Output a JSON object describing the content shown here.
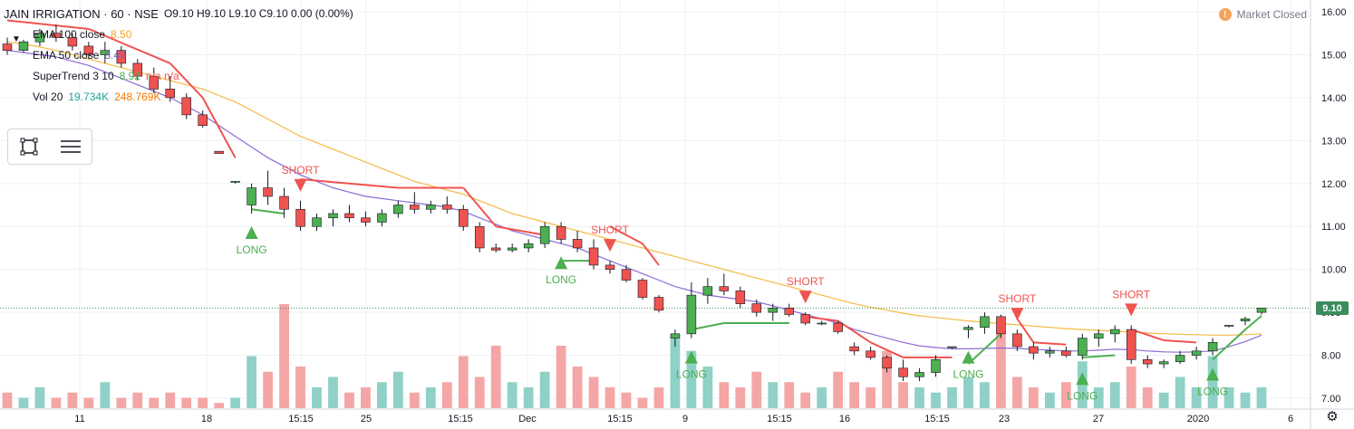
{
  "header": {
    "symbol": "JAIN IRRIGATION · 60 · NSE",
    "ohlc": "O9.10  H9.10  L9.10  C9.10  0.00 (0.00%)",
    "market_status": "Market Closed",
    "market_icon": "!"
  },
  "legend": {
    "ema100_label": "EMA 100 close",
    "ema100_value": "8.50",
    "ema50_label": "EMA 50 close",
    "ema50_value": "8.47",
    "supertrend_label": "SuperTrend 3 10",
    "supertrend_value": "8.92",
    "supertrend_na": "n/a  n/a",
    "vol_label": "Vol 20",
    "vol_value1": "19.734K",
    "vol_value2": "248.769K"
  },
  "colors": {
    "up": "#26a69a",
    "down": "#ef5350",
    "candle_up": "#4caf50",
    "candle_down": "#ef5350",
    "vol_up": "#8fd1c6",
    "vol_down": "#f4a6a6",
    "ema100": "#f5b942",
    "ema50": "#8e6bd6",
    "supertrend_up": "#4caf50",
    "supertrend_down": "#ef5350",
    "grid": "#eef0f4",
    "last_price": "#3c8c5e"
  },
  "icons": [
    "rectangle-tool-icon",
    "text-lines-tool-icon",
    "settings-gear-icon",
    "chevron-down-icon"
  ],
  "chart_data": {
    "type": "candlestick",
    "title": "JAIN IRRIGATION · 60 · NSE",
    "ylim": [
      6.9,
      16.1
    ],
    "y_ticks": [
      "16.00",
      "15.00",
      "14.00",
      "13.00",
      "12.00",
      "11.00",
      "10.00",
      "9.00",
      "8.00",
      "7.00"
    ],
    "x_ticks": [
      "11",
      "18",
      "15:15",
      "25",
      "15:15",
      "Dec",
      "15:15",
      "9",
      "15:15",
      "16",
      "15:15",
      "23",
      "27",
      "2020",
      "6"
    ],
    "last_price": "9.10",
    "candles": [
      {
        "i": 0,
        "o": 15.25,
        "h": 15.4,
        "l": 15.0,
        "c": 15.1
      },
      {
        "i": 1,
        "o": 15.1,
        "h": 15.35,
        "l": 15.05,
        "c": 15.3
      },
      {
        "i": 2,
        "o": 15.3,
        "h": 15.6,
        "l": 15.2,
        "c": 15.5
      },
      {
        "i": 3,
        "o": 15.5,
        "h": 15.7,
        "l": 15.3,
        "c": 15.4
      },
      {
        "i": 4,
        "o": 15.4,
        "h": 15.5,
        "l": 15.1,
        "c": 15.2
      },
      {
        "i": 5,
        "o": 15.2,
        "h": 15.3,
        "l": 14.9,
        "c": 15.0
      },
      {
        "i": 6,
        "o": 15.0,
        "h": 15.3,
        "l": 14.8,
        "c": 15.1
      },
      {
        "i": 7,
        "o": 15.1,
        "h": 15.2,
        "l": 14.7,
        "c": 14.8
      },
      {
        "i": 8,
        "o": 14.8,
        "h": 14.9,
        "l": 14.4,
        "c": 14.5
      },
      {
        "i": 9,
        "o": 14.5,
        "h": 14.7,
        "l": 14.1,
        "c": 14.2
      },
      {
        "i": 10,
        "o": 14.2,
        "h": 14.5,
        "l": 13.9,
        "c": 14.0
      },
      {
        "i": 11,
        "o": 14.0,
        "h": 14.1,
        "l": 13.5,
        "c": 13.6
      },
      {
        "i": 12,
        "o": 13.6,
        "h": 13.7,
        "l": 13.3,
        "c": 13.35
      },
      {
        "i": 13,
        "o": 12.75,
        "h": 12.75,
        "l": 12.7,
        "c": 12.7
      },
      {
        "i": 14,
        "o": 12.05,
        "h": 12.05,
        "l": 12.0,
        "c": 12.05
      },
      {
        "i": 15,
        "o": 11.5,
        "h": 12.0,
        "l": 11.3,
        "c": 11.9
      },
      {
        "i": 16,
        "o": 11.9,
        "h": 12.3,
        "l": 11.5,
        "c": 11.7
      },
      {
        "i": 17,
        "o": 11.7,
        "h": 11.9,
        "l": 11.2,
        "c": 11.4
      },
      {
        "i": 18,
        "o": 11.4,
        "h": 11.6,
        "l": 10.9,
        "c": 11.0
      },
      {
        "i": 19,
        "o": 11.0,
        "h": 11.3,
        "l": 10.9,
        "c": 11.2
      },
      {
        "i": 20,
        "o": 11.2,
        "h": 11.4,
        "l": 11.0,
        "c": 11.3
      },
      {
        "i": 21,
        "o": 11.3,
        "h": 11.5,
        "l": 11.1,
        "c": 11.2
      },
      {
        "i": 22,
        "o": 11.2,
        "h": 11.35,
        "l": 11.0,
        "c": 11.1
      },
      {
        "i": 23,
        "o": 11.1,
        "h": 11.4,
        "l": 11.0,
        "c": 11.3
      },
      {
        "i": 24,
        "o": 11.3,
        "h": 11.6,
        "l": 11.2,
        "c": 11.5
      },
      {
        "i": 25,
        "o": 11.5,
        "h": 11.8,
        "l": 11.3,
        "c": 11.4
      },
      {
        "i": 26,
        "o": 11.4,
        "h": 11.6,
        "l": 11.3,
        "c": 11.5
      },
      {
        "i": 27,
        "o": 11.5,
        "h": 11.7,
        "l": 11.3,
        "c": 11.4
      },
      {
        "i": 28,
        "o": 11.4,
        "h": 11.5,
        "l": 10.9,
        "c": 11.0
      },
      {
        "i": 29,
        "o": 11.0,
        "h": 11.1,
        "l": 10.4,
        "c": 10.5
      },
      {
        "i": 30,
        "o": 10.5,
        "h": 10.6,
        "l": 10.4,
        "c": 10.45
      },
      {
        "i": 31,
        "o": 10.45,
        "h": 10.6,
        "l": 10.4,
        "c": 10.5
      },
      {
        "i": 32,
        "o": 10.5,
        "h": 10.7,
        "l": 10.4,
        "c": 10.6
      },
      {
        "i": 33,
        "o": 10.6,
        "h": 11.1,
        "l": 10.5,
        "c": 11.0
      },
      {
        "i": 34,
        "o": 11.0,
        "h": 11.1,
        "l": 10.6,
        "c": 10.7
      },
      {
        "i": 35,
        "o": 10.7,
        "h": 10.9,
        "l": 10.4,
        "c": 10.5
      },
      {
        "i": 36,
        "o": 10.5,
        "h": 10.7,
        "l": 10.0,
        "c": 10.1
      },
      {
        "i": 37,
        "o": 10.1,
        "h": 10.2,
        "l": 9.9,
        "c": 10.0
      },
      {
        "i": 38,
        "o": 10.0,
        "h": 10.1,
        "l": 9.7,
        "c": 9.75
      },
      {
        "i": 39,
        "o": 9.75,
        "h": 9.8,
        "l": 9.3,
        "c": 9.35
      },
      {
        "i": 40,
        "o": 9.35,
        "h": 9.4,
        "l": 9.0,
        "c": 9.05
      },
      {
        "i": 41,
        "o": 8.4,
        "h": 8.6,
        "l": 8.2,
        "c": 8.5
      },
      {
        "i": 42,
        "o": 8.5,
        "h": 9.7,
        "l": 8.4,
        "c": 9.4
      },
      {
        "i": 43,
        "o": 9.4,
        "h": 9.8,
        "l": 9.2,
        "c": 9.6
      },
      {
        "i": 44,
        "o": 9.6,
        "h": 9.9,
        "l": 9.4,
        "c": 9.5
      },
      {
        "i": 45,
        "o": 9.5,
        "h": 9.6,
        "l": 9.1,
        "c": 9.2
      },
      {
        "i": 46,
        "o": 9.2,
        "h": 9.3,
        "l": 8.9,
        "c": 9.0
      },
      {
        "i": 47,
        "o": 9.0,
        "h": 9.2,
        "l": 8.8,
        "c": 9.1
      },
      {
        "i": 48,
        "o": 9.1,
        "h": 9.2,
        "l": 8.9,
        "c": 8.95
      },
      {
        "i": 49,
        "o": 8.95,
        "h": 9.0,
        "l": 8.7,
        "c": 8.75
      },
      {
        "i": 50,
        "o": 8.75,
        "h": 8.8,
        "l": 8.7,
        "c": 8.75
      },
      {
        "i": 51,
        "o": 8.75,
        "h": 8.8,
        "l": 8.5,
        "c": 8.55
      },
      {
        "i": 52,
        "o": 8.2,
        "h": 8.3,
        "l": 8.0,
        "c": 8.1
      },
      {
        "i": 53,
        "o": 8.1,
        "h": 8.2,
        "l": 7.9,
        "c": 7.95
      },
      {
        "i": 54,
        "o": 7.95,
        "h": 8.0,
        "l": 7.6,
        "c": 7.7
      },
      {
        "i": 55,
        "o": 7.7,
        "h": 7.9,
        "l": 7.4,
        "c": 7.5
      },
      {
        "i": 56,
        "o": 7.5,
        "h": 7.7,
        "l": 7.4,
        "c": 7.6
      },
      {
        "i": 57,
        "o": 7.6,
        "h": 8.0,
        "l": 7.5,
        "c": 7.9
      },
      {
        "i": 58,
        "o": 8.2,
        "h": 8.2,
        "l": 8.15,
        "c": 8.2
      },
      {
        "i": 59,
        "o": 8.6,
        "h": 8.7,
        "l": 8.4,
        "c": 8.65
      },
      {
        "i": 60,
        "o": 8.65,
        "h": 9.0,
        "l": 8.5,
        "c": 8.9
      },
      {
        "i": 61,
        "o": 8.9,
        "h": 8.95,
        "l": 8.4,
        "c": 8.5
      },
      {
        "i": 62,
        "o": 8.5,
        "h": 8.6,
        "l": 8.1,
        "c": 8.2
      },
      {
        "i": 63,
        "o": 8.2,
        "h": 8.3,
        "l": 7.9,
        "c": 8.05
      },
      {
        "i": 64,
        "o": 8.05,
        "h": 8.2,
        "l": 7.95,
        "c": 8.1
      },
      {
        "i": 65,
        "o": 8.1,
        "h": 8.2,
        "l": 7.95,
        "c": 8.0
      },
      {
        "i": 66,
        "o": 8.0,
        "h": 8.5,
        "l": 7.9,
        "c": 8.4
      },
      {
        "i": 67,
        "o": 8.4,
        "h": 8.6,
        "l": 8.2,
        "c": 8.5
      },
      {
        "i": 68,
        "o": 8.5,
        "h": 8.7,
        "l": 8.3,
        "c": 8.6
      },
      {
        "i": 69,
        "o": 8.6,
        "h": 8.7,
        "l": 7.8,
        "c": 7.9
      },
      {
        "i": 70,
        "o": 7.9,
        "h": 8.0,
        "l": 7.7,
        "c": 7.8
      },
      {
        "i": 71,
        "o": 7.8,
        "h": 7.9,
        "l": 7.7,
        "c": 7.85
      },
      {
        "i": 72,
        "o": 7.85,
        "h": 8.1,
        "l": 7.8,
        "c": 8.0
      },
      {
        "i": 73,
        "o": 8.0,
        "h": 8.2,
        "l": 7.9,
        "c": 8.1
      },
      {
        "i": 74,
        "o": 8.1,
        "h": 8.4,
        "l": 8.0,
        "c": 8.3
      },
      {
        "i": 75,
        "o": 8.7,
        "h": 8.7,
        "l": 8.65,
        "c": 8.7
      },
      {
        "i": 76,
        "o": 8.8,
        "h": 8.9,
        "l": 8.7,
        "c": 8.85
      },
      {
        "i": 77,
        "o": 9.0,
        "h": 9.1,
        "l": 8.95,
        "c": 9.1
      }
    ],
    "ema100": [
      15.3,
      15.25,
      15.18,
      15.1,
      15.0,
      14.9,
      14.8,
      14.7,
      14.6,
      14.5,
      14.4,
      14.3,
      14.2,
      14.05,
      13.9,
      13.7,
      13.5,
      13.3,
      13.1,
      12.95,
      12.8,
      12.65,
      12.5,
      12.35,
      12.2,
      12.05,
      11.95,
      11.85,
      11.75,
      11.6,
      11.45,
      11.3,
      11.2,
      11.1,
      11.0,
      10.9,
      10.8,
      10.7,
      10.6,
      10.5,
      10.4,
      10.3,
      10.2,
      10.1,
      10.0,
      9.9,
      9.8,
      9.7,
      9.6,
      9.5,
      9.4,
      9.3,
      9.2,
      9.12,
      9.05,
      8.98,
      8.92,
      8.88,
      8.84,
      8.8,
      8.77,
      8.74,
      8.71,
      8.68,
      8.65,
      8.62,
      8.6,
      8.58,
      8.56,
      8.54,
      8.52,
      8.5,
      8.49,
      8.48,
      8.47,
      8.47,
      8.48,
      8.5
    ],
    "ema50": [
      15.1,
      15.05,
      15.0,
      14.95,
      14.85,
      14.75,
      14.6,
      14.45,
      14.3,
      14.15,
      14.0,
      13.8,
      13.6,
      13.35,
      13.1,
      12.85,
      12.6,
      12.4,
      12.2,
      12.05,
      11.9,
      11.8,
      11.7,
      11.65,
      11.6,
      11.55,
      11.5,
      11.45,
      11.35,
      11.2,
      11.05,
      10.9,
      10.8,
      10.7,
      10.6,
      10.5,
      10.35,
      10.2,
      10.05,
      9.9,
      9.75,
      9.6,
      9.5,
      9.4,
      9.35,
      9.3,
      9.25,
      9.15,
      9.05,
      8.95,
      8.85,
      8.75,
      8.6,
      8.5,
      8.4,
      8.3,
      8.22,
      8.18,
      8.15,
      8.15,
      8.16,
      8.17,
      8.16,
      8.14,
      8.12,
      8.1,
      8.1,
      8.12,
      8.14,
      8.13,
      8.1,
      8.08,
      8.07,
      8.08,
      8.1,
      8.2,
      8.32,
      8.47
    ],
    "supertrend": [
      {
        "i": 0,
        "v": 15.8,
        "dir": "down"
      },
      {
        "i": 5,
        "v": 15.6,
        "dir": "down"
      },
      {
        "i": 10,
        "v": 14.8,
        "dir": "down"
      },
      {
        "i": 12,
        "v": 14.0,
        "dir": "down"
      },
      {
        "i": 14,
        "v": 12.6,
        "dir": "down"
      },
      {
        "i": 15,
        "v": 11.4,
        "dir": "up"
      },
      {
        "i": 17,
        "v": 11.3,
        "dir": "up"
      },
      {
        "i": 18,
        "v": 12.1,
        "dir": "down"
      },
      {
        "i": 24,
        "v": 11.9,
        "dir": "down"
      },
      {
        "i": 28,
        "v": 11.9,
        "dir": "down"
      },
      {
        "i": 30,
        "v": 11.0,
        "dir": "down"
      },
      {
        "i": 33,
        "v": 10.8,
        "dir": "down"
      },
      {
        "i": 34,
        "v": 10.2,
        "dir": "up"
      },
      {
        "i": 36,
        "v": 10.2,
        "dir": "up"
      },
      {
        "i": 37,
        "v": 11.0,
        "dir": "down"
      },
      {
        "i": 39,
        "v": 10.6,
        "dir": "down"
      },
      {
        "i": 40,
        "v": 10.1,
        "dir": "down"
      },
      {
        "i": 42,
        "v": 8.6,
        "dir": "up"
      },
      {
        "i": 44,
        "v": 8.75,
        "dir": "up"
      },
      {
        "i": 48,
        "v": 8.75,
        "dir": "up"
      },
      {
        "i": 49,
        "v": 8.9,
        "dir": "down"
      },
      {
        "i": 51,
        "v": 8.8,
        "dir": "down"
      },
      {
        "i": 53,
        "v": 8.3,
        "dir": "down"
      },
      {
        "i": 55,
        "v": 7.95,
        "dir": "down"
      },
      {
        "i": 58,
        "v": 7.95,
        "dir": "down"
      },
      {
        "i": 59,
        "v": 7.8,
        "dir": "up"
      },
      {
        "i": 61,
        "v": 8.5,
        "dir": "up"
      },
      {
        "i": 62,
        "v": 8.85,
        "dir": "down"
      },
      {
        "i": 63,
        "v": 8.3,
        "dir": "down"
      },
      {
        "i": 65,
        "v": 8.25,
        "dir": "down"
      },
      {
        "i": 66,
        "v": 7.95,
        "dir": "up"
      },
      {
        "i": 68,
        "v": 8.0,
        "dir": "up"
      },
      {
        "i": 69,
        "v": 8.6,
        "dir": "down"
      },
      {
        "i": 71,
        "v": 8.35,
        "dir": "down"
      },
      {
        "i": 73,
        "v": 8.3,
        "dir": "down"
      },
      {
        "i": 74,
        "v": 7.9,
        "dir": "up"
      },
      {
        "i": 76,
        "v": 8.6,
        "dir": "up"
      },
      {
        "i": 77,
        "v": 8.92,
        "dir": "up"
      }
    ],
    "signals": [
      {
        "i": 15,
        "type": "LONG"
      },
      {
        "i": 18,
        "type": "SHORT"
      },
      {
        "i": 34,
        "type": "LONG"
      },
      {
        "i": 37,
        "type": "SHORT"
      },
      {
        "i": 42,
        "type": "LONG"
      },
      {
        "i": 49,
        "type": "SHORT"
      },
      {
        "i": 59,
        "type": "LONG"
      },
      {
        "i": 62,
        "type": "SHORT"
      },
      {
        "i": 66,
        "type": "LONG"
      },
      {
        "i": 69,
        "type": "SHORT"
      },
      {
        "i": 74,
        "type": "LONG"
      }
    ],
    "volume": [
      3,
      2,
      4,
      2,
      3,
      2,
      5,
      2,
      3,
      2,
      3,
      2,
      2,
      1,
      2,
      10,
      7,
      20,
      8,
      4,
      6,
      3,
      4,
      5,
      7,
      3,
      4,
      5,
      10,
      6,
      12,
      5,
      4,
      7,
      12,
      8,
      6,
      4,
      3,
      2,
      4,
      14,
      11,
      8,
      5,
      4,
      7,
      5,
      5,
      3,
      4,
      7,
      5,
      4,
      11,
      5,
      4,
      3,
      4,
      6,
      5,
      15,
      6,
      4,
      3,
      5,
      9,
      4,
      5,
      8,
      4,
      3,
      6,
      4,
      10,
      4,
      3,
      4
    ]
  }
}
